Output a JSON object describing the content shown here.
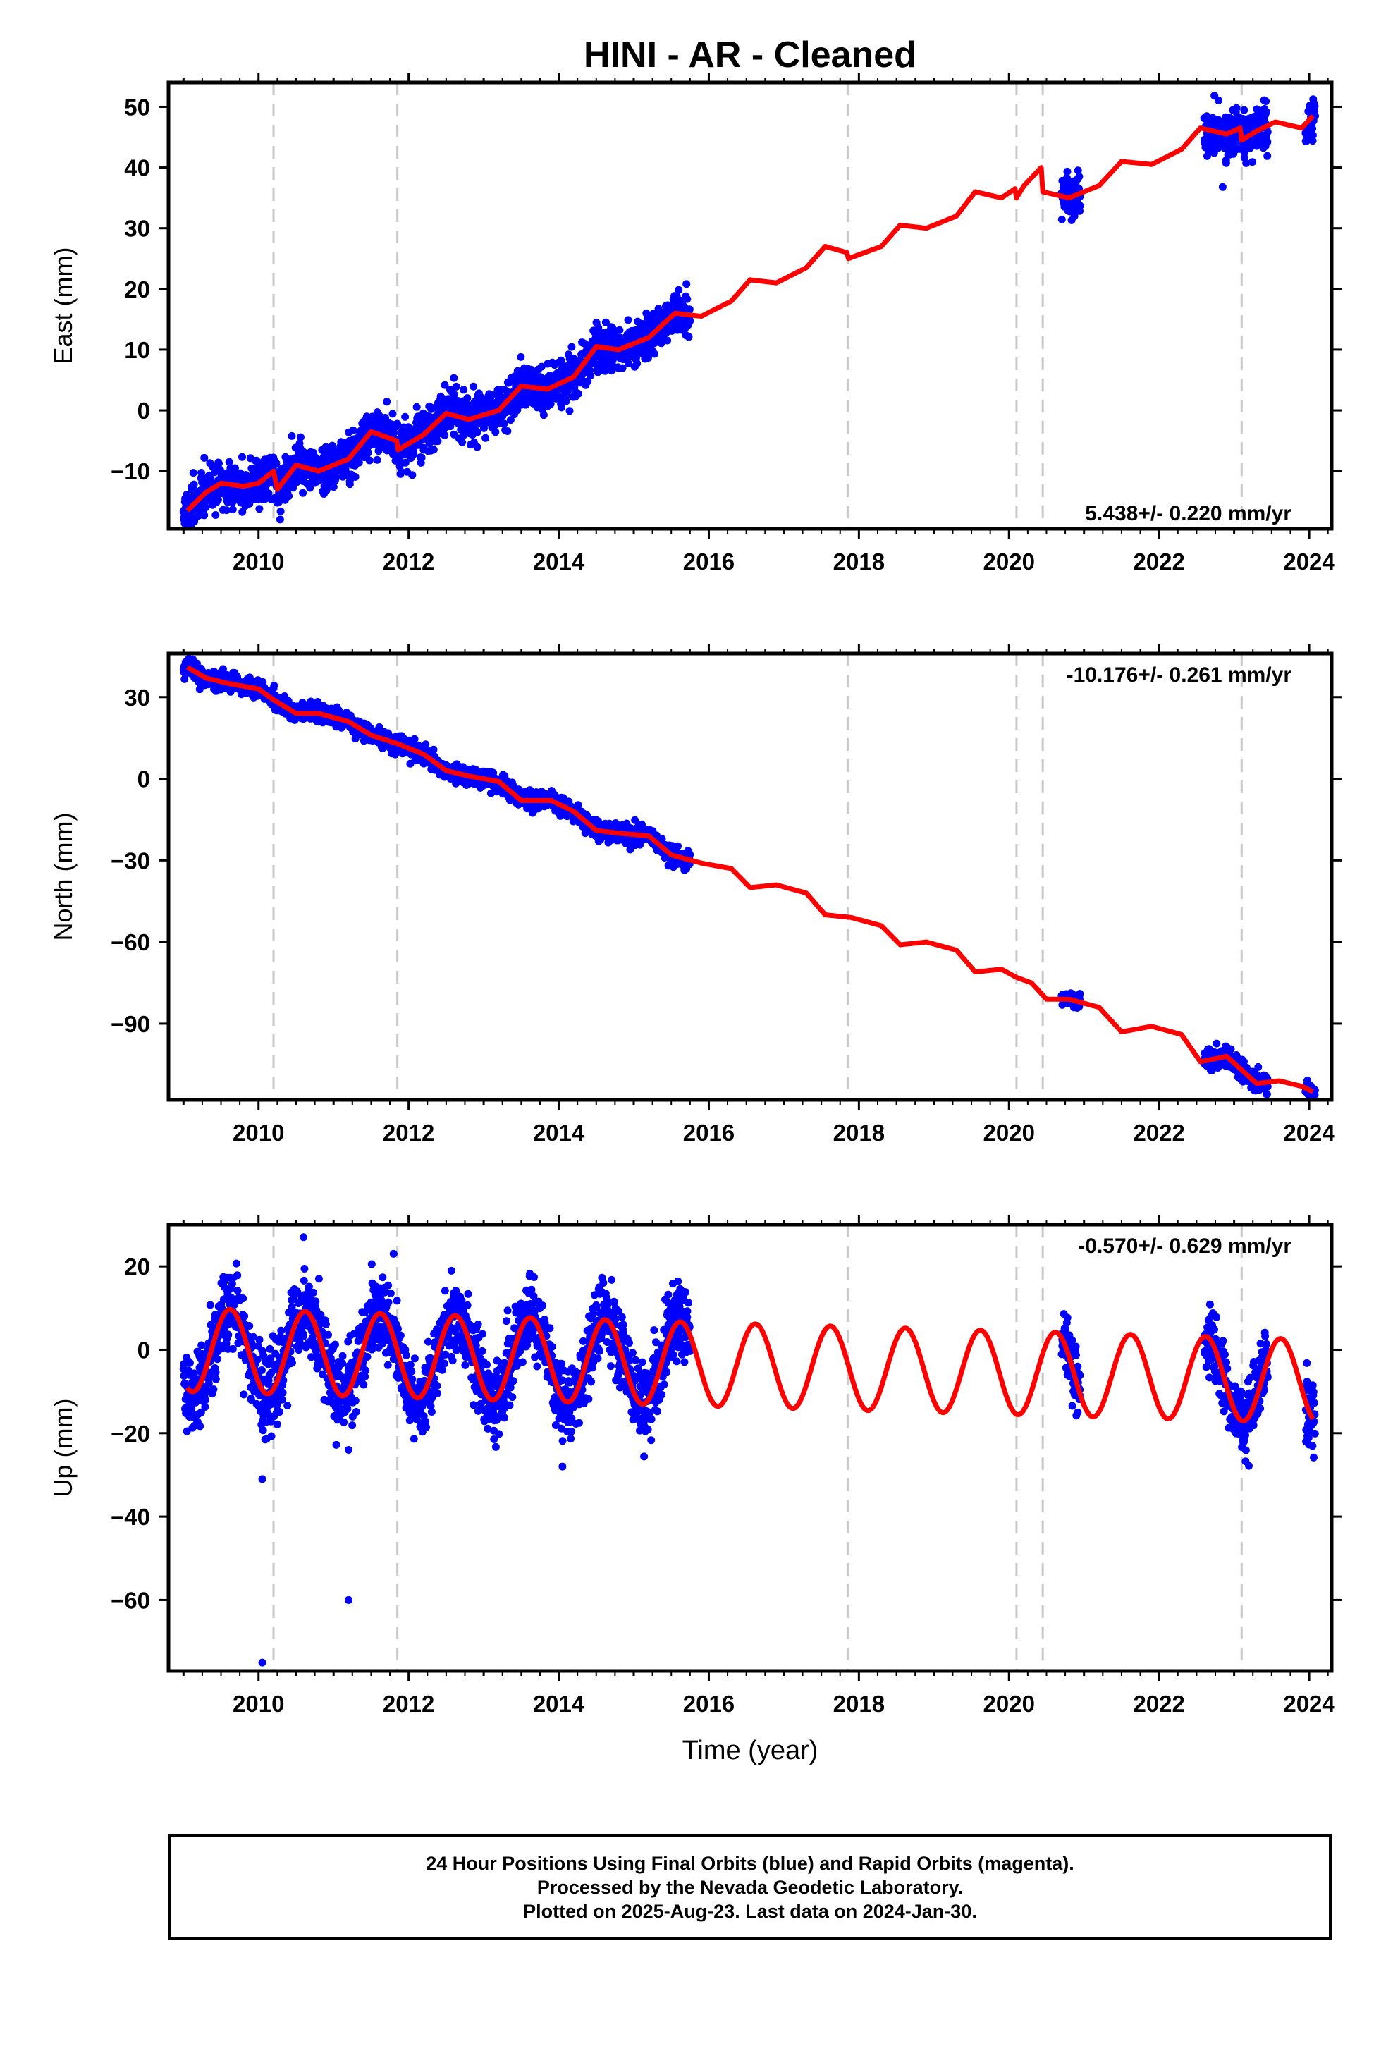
{
  "title": "HINI  - AR - Cleaned",
  "xlabel": "Time (year)",
  "footer": {
    "line1": "24 Hour Positions Using Final Orbits (blue) and Rapid Orbits (magenta).",
    "line2": "Processed by the Nevada Geodetic Laboratory.",
    "line3": "Plotted on 2025-Aug-23. Last data on 2024-Jan-30."
  },
  "colors": {
    "data": "#0000ff",
    "model": "#ff0000",
    "breaks": "#c8c8c8",
    "frame": "#000000"
  },
  "chart_data": [
    {
      "type": "scatter",
      "ylabel": "East (mm)",
      "rate": "5.438+/- 0.220 mm/yr",
      "xlim": [
        2008.8,
        2024.3
      ],
      "ylim": [
        -19.5,
        54
      ],
      "yticks": [
        -10,
        0,
        10,
        20,
        30,
        40,
        50
      ],
      "yticklabels": [
        "−10",
        "0",
        "10",
        "20",
        "30",
        "40",
        "50"
      ],
      "xticks": [
        2010,
        2012,
        2014,
        2016,
        2018,
        2020,
        2022,
        2024
      ],
      "breaks": [
        2010.2,
        2011.85,
        2017.85,
        2020.1,
        2020.45,
        2023.1
      ],
      "model": [
        [
          2009.05,
          -16.5
        ],
        [
          2009.3,
          -13.5
        ],
        [
          2009.5,
          -12
        ],
        [
          2009.8,
          -12.5
        ],
        [
          2010.0,
          -12
        ],
        [
          2010.2,
          -10
        ],
        [
          2010.25,
          -13
        ],
        [
          2010.5,
          -9
        ],
        [
          2010.8,
          -10
        ],
        [
          2011.2,
          -8
        ],
        [
          2011.5,
          -3.5
        ],
        [
          2011.84,
          -5
        ],
        [
          2011.86,
          -6.5
        ],
        [
          2012.2,
          -4
        ],
        [
          2012.5,
          -0.5
        ],
        [
          2012.8,
          -1.5
        ],
        [
          2013.2,
          0
        ],
        [
          2013.5,
          4
        ],
        [
          2013.85,
          3.5
        ],
        [
          2014.2,
          5.5
        ],
        [
          2014.5,
          10.5
        ],
        [
          2014.8,
          10
        ],
        [
          2015.2,
          12
        ],
        [
          2015.55,
          16
        ],
        [
          2015.9,
          15.5
        ],
        [
          2016.3,
          18
        ],
        [
          2016.55,
          21.5
        ],
        [
          2016.9,
          21
        ],
        [
          2017.3,
          23.5
        ],
        [
          2017.55,
          27
        ],
        [
          2017.84,
          26
        ],
        [
          2017.86,
          25
        ],
        [
          2018.3,
          27
        ],
        [
          2018.55,
          30.5
        ],
        [
          2018.9,
          30
        ],
        [
          2019.3,
          32
        ],
        [
          2019.55,
          36
        ],
        [
          2019.9,
          35
        ],
        [
          2020.08,
          36.5
        ],
        [
          2020.1,
          35
        ],
        [
          2020.2,
          37
        ],
        [
          2020.43,
          40
        ],
        [
          2020.45,
          36
        ],
        [
          2020.8,
          35
        ],
        [
          2021.2,
          37
        ],
        [
          2021.5,
          41
        ],
        [
          2021.9,
          40.5
        ],
        [
          2022.3,
          43
        ],
        [
          2022.55,
          46.5
        ],
        [
          2022.9,
          45.5
        ],
        [
          2023.08,
          46.5
        ],
        [
          2023.1,
          44.5
        ],
        [
          2023.3,
          46
        ],
        [
          2023.55,
          47.5
        ],
        [
          2023.9,
          46.5
        ],
        [
          2024.05,
          48.5
        ]
      ],
      "segments": [
        {
          "x0": 2009.0,
          "x1": 2015.75,
          "sd": 1.8
        },
        {
          "x0": 2020.7,
          "x1": 2020.95,
          "sd": 1.6
        },
        {
          "x0": 2022.6,
          "x1": 2023.45,
          "sd": 2.0
        },
        {
          "x0": 2023.95,
          "x1": 2024.08,
          "sd": 1.6
        }
      ]
    },
    {
      "type": "scatter",
      "ylabel": "North (mm)",
      "rate": "-10.176+/- 0.261 mm/yr",
      "xlim": [
        2008.8,
        2024.3
      ],
      "ylim": [
        -118,
        46
      ],
      "yticks": [
        -90,
        -60,
        -30,
        0,
        30
      ],
      "yticklabels": [
        "−90",
        "−60",
        "−30",
        "0",
        "30"
      ],
      "xticks": [
        2010,
        2012,
        2014,
        2016,
        2018,
        2020,
        2022,
        2024
      ],
      "breaks": [
        2010.2,
        2011.85,
        2017.85,
        2020.1,
        2020.45,
        2023.1
      ],
      "model": [
        [
          2009.05,
          41
        ],
        [
          2009.3,
          37
        ],
        [
          2009.6,
          35
        ],
        [
          2010.0,
          33
        ],
        [
          2010.2,
          29
        ],
        [
          2010.5,
          24
        ],
        [
          2010.8,
          24
        ],
        [
          2011.2,
          21
        ],
        [
          2011.5,
          16
        ],
        [
          2011.84,
          13
        ],
        [
          2012.2,
          9
        ],
        [
          2012.5,
          3
        ],
        [
          2012.8,
          1
        ],
        [
          2013.2,
          -1
        ],
        [
          2013.5,
          -8
        ],
        [
          2013.9,
          -8
        ],
        [
          2014.2,
          -12
        ],
        [
          2014.5,
          -19
        ],
        [
          2014.8,
          -20
        ],
        [
          2015.2,
          -21
        ],
        [
          2015.5,
          -28
        ],
        [
          2015.9,
          -31
        ],
        [
          2016.3,
          -33
        ],
        [
          2016.55,
          -40
        ],
        [
          2016.9,
          -39
        ],
        [
          2017.3,
          -42
        ],
        [
          2017.55,
          -50
        ],
        [
          2017.9,
          -51
        ],
        [
          2018.3,
          -54
        ],
        [
          2018.55,
          -61
        ],
        [
          2018.9,
          -60
        ],
        [
          2019.3,
          -63
        ],
        [
          2019.55,
          -71
        ],
        [
          2019.9,
          -70
        ],
        [
          2020.1,
          -73
        ],
        [
          2020.3,
          -75
        ],
        [
          2020.5,
          -81
        ],
        [
          2020.8,
          -81
        ],
        [
          2021.2,
          -84
        ],
        [
          2021.5,
          -93
        ],
        [
          2021.9,
          -91
        ],
        [
          2022.3,
          -94
        ],
        [
          2022.55,
          -104
        ],
        [
          2022.9,
          -102
        ],
        [
          2023.1,
          -107
        ],
        [
          2023.3,
          -112
        ],
        [
          2023.6,
          -111
        ],
        [
          2023.9,
          -113
        ],
        [
          2024.05,
          -115
        ]
      ],
      "segments": [
        {
          "x0": 2009.0,
          "x1": 2015.75,
          "sd": 1.6
        },
        {
          "x0": 2020.7,
          "x1": 2020.95,
          "sd": 1.2
        },
        {
          "x0": 2022.6,
          "x1": 2023.45,
          "sd": 1.8
        },
        {
          "x0": 2023.95,
          "x1": 2024.08,
          "sd": 1.6
        }
      ]
    },
    {
      "type": "scatter",
      "ylabel": "Up (mm)",
      "rate": "-0.570+/- 0.629 mm/yr",
      "xlim": [
        2008.8,
        2024.3
      ],
      "ylim": [
        -77,
        30
      ],
      "yticks": [
        -60,
        -40,
        -20,
        0,
        20
      ],
      "yticklabels": [
        "−60",
        "−40",
        "−20",
        "0",
        "20"
      ],
      "xticks": [
        2010,
        2012,
        2014,
        2016,
        2018,
        2020,
        2022,
        2024
      ],
      "breaks": [
        2010.2,
        2011.85,
        2017.85,
        2020.1,
        2020.45,
        2023.1
      ],
      "seasonal_amplitude_mm": 10,
      "seasonal_peak_phase_yr": 0.62,
      "segments": [
        {
          "x0": 2009.0,
          "x1": 2015.75,
          "sd": 4.5
        },
        {
          "x0": 2020.7,
          "x1": 2020.95,
          "sd": 3.5
        },
        {
          "x0": 2022.6,
          "x1": 2023.45,
          "sd": 4.0
        },
        {
          "x0": 2023.95,
          "x1": 2024.08,
          "sd": 4.0
        }
      ],
      "outliers": [
        [
          2010.05,
          -75
        ],
        [
          2010.05,
          -31
        ],
        [
          2011.2,
          -60
        ],
        [
          2011.2,
          -24
        ],
        [
          2014.05,
          -28
        ],
        [
          2010.6,
          27
        ],
        [
          2011.8,
          23
        ]
      ]
    }
  ]
}
